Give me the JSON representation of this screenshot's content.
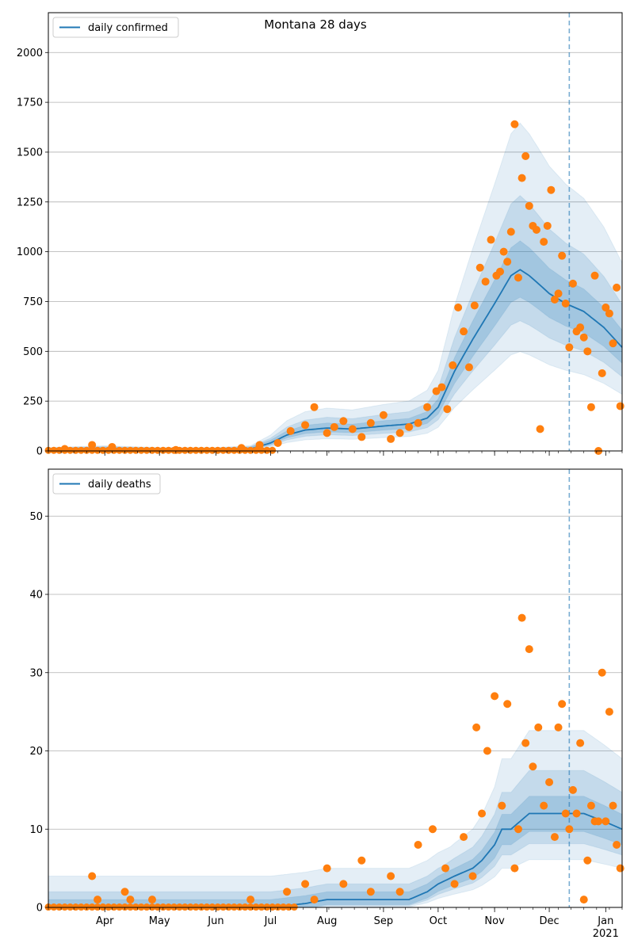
{
  "chart_data": [
    {
      "type": "line",
      "title": "Montana 28 days",
      "legend": {
        "placement": "top-left",
        "label": "daily confirmed"
      },
      "grid": "horizontal",
      "ylim": [
        0,
        2200
      ],
      "yticks": [
        0,
        250,
        500,
        750,
        1000,
        1250,
        1500,
        1750,
        2000
      ],
      "xlim": [
        "2020-03-01",
        "2021-01-10"
      ],
      "month_ticks": [
        "Apr",
        "May",
        "Jun",
        "Jul",
        "Aug",
        "Sep",
        "Oct",
        "Nov",
        "Dec",
        "Jan"
      ],
      "month_tick_dates": [
        "2020-04-01",
        "2020-05-01",
        "2020-06-01",
        "2020-07-01",
        "2020-08-01",
        "2020-09-01",
        "2020-10-01",
        "2020-11-01",
        "2020-12-01",
        "2021-01-01"
      ],
      "year_label": "2021",
      "vline_date": "2020-12-12",
      "series": [
        {
          "name": "daily confirmed",
          "color": "#1f77b4",
          "x": [
            "2020-03-01",
            "2020-04-01",
            "2020-05-01",
            "2020-06-01",
            "2020-06-20",
            "2020-07-01",
            "2020-07-10",
            "2020-07-20",
            "2020-08-01",
            "2020-08-15",
            "2020-09-01",
            "2020-09-15",
            "2020-09-25",
            "2020-10-01",
            "2020-10-10",
            "2020-10-20",
            "2020-11-01",
            "2020-11-10",
            "2020-11-15",
            "2020-11-20",
            "2020-11-25",
            "2020-12-01",
            "2020-12-10",
            "2020-12-20",
            "2020-12-31",
            "2021-01-10"
          ],
          "values": [
            5,
            10,
            5,
            5,
            10,
            40,
            80,
            105,
            115,
            110,
            125,
            135,
            165,
            220,
            400,
            560,
            740,
            880,
            910,
            880,
            840,
            790,
            740,
            700,
            620,
            520
          ]
        },
        {
          "name": "observed",
          "color": "#ff7f0e",
          "x": [
            "2020-03-10",
            "2020-03-25",
            "2020-04-05",
            "2020-05-10",
            "2020-06-15",
            "2020-06-25",
            "2020-07-05",
            "2020-07-12",
            "2020-07-20",
            "2020-07-25",
            "2020-08-01",
            "2020-08-05",
            "2020-08-10",
            "2020-08-15",
            "2020-08-20",
            "2020-08-25",
            "2020-09-01",
            "2020-09-05",
            "2020-09-10",
            "2020-09-15",
            "2020-09-20",
            "2020-09-25",
            "2020-09-30",
            "2020-10-03",
            "2020-10-06",
            "2020-10-09",
            "2020-10-12",
            "2020-10-15",
            "2020-10-18",
            "2020-10-21",
            "2020-10-24",
            "2020-10-27",
            "2020-10-30",
            "2020-11-02",
            "2020-11-04",
            "2020-11-06",
            "2020-11-08",
            "2020-11-10",
            "2020-11-12",
            "2020-11-14",
            "2020-11-16",
            "2020-11-18",
            "2020-11-20",
            "2020-11-22",
            "2020-11-24",
            "2020-11-26",
            "2020-11-28",
            "2020-11-30",
            "2020-12-02",
            "2020-12-04",
            "2020-12-06",
            "2020-12-08",
            "2020-12-10",
            "2020-12-12",
            "2020-12-14",
            "2020-12-16",
            "2020-12-18",
            "2020-12-20",
            "2020-12-22",
            "2020-12-24",
            "2020-12-26",
            "2020-12-28",
            "2020-12-30",
            "2021-01-01",
            "2021-01-03",
            "2021-01-05",
            "2021-01-07",
            "2021-01-09"
          ],
          "values": [
            10,
            30,
            20,
            5,
            15,
            30,
            40,
            100,
            130,
            220,
            90,
            120,
            150,
            110,
            70,
            140,
            180,
            60,
            90,
            120,
            140,
            220,
            300,
            320,
            210,
            430,
            720,
            600,
            420,
            730,
            920,
            850,
            1060,
            880,
            900,
            1000,
            950,
            1100,
            1640,
            870,
            1370,
            1480,
            1230,
            1130,
            1110,
            110,
            1050,
            1130,
            1310,
            760,
            790,
            980,
            740,
            520,
            840,
            600,
            620,
            570,
            500,
            220,
            880,
            0,
            390,
            720,
            690,
            540,
            820,
            225
          ]
        }
      ]
    },
    {
      "type": "line",
      "legend": {
        "placement": "top-left",
        "label": "daily deaths"
      },
      "grid": "horizontal",
      "ylim": [
        0,
        56
      ],
      "yticks": [
        0,
        10,
        20,
        30,
        40,
        50
      ],
      "xlim": [
        "2020-03-01",
        "2021-01-10"
      ],
      "month_ticks": [
        "Apr",
        "May",
        "Jun",
        "Jul",
        "Aug",
        "Sep",
        "Oct",
        "Nov",
        "Dec",
        "Jan"
      ],
      "month_tick_dates": [
        "2020-04-01",
        "2020-05-01",
        "2020-06-01",
        "2020-07-01",
        "2020-08-01",
        "2020-09-01",
        "2020-10-01",
        "2020-11-01",
        "2020-12-01",
        "2021-01-01"
      ],
      "year_label": "2021",
      "vline_date": "2020-12-12",
      "series": [
        {
          "name": "daily deaths",
          "color": "#1f77b4",
          "x": [
            "2020-03-01",
            "2020-04-01",
            "2020-05-01",
            "2020-06-01",
            "2020-07-01",
            "2020-07-20",
            "2020-08-01",
            "2020-08-20",
            "2020-09-01",
            "2020-09-15",
            "2020-09-25",
            "2020-10-01",
            "2020-10-10",
            "2020-10-20",
            "2020-10-25",
            "2020-11-01",
            "2020-11-05",
            "2020-11-10",
            "2020-11-15",
            "2020-11-20",
            "2020-11-25",
            "2020-12-01",
            "2020-12-10",
            "2020-12-20",
            "2020-12-31",
            "2021-01-10"
          ],
          "values": [
            0,
            0,
            0,
            0,
            0,
            0.5,
            1,
            1,
            1,
            1,
            2,
            3,
            4,
            5,
            6,
            8,
            10,
            10,
            11,
            12,
            12,
            12,
            12,
            12,
            11,
            10
          ]
        },
        {
          "name": "observed",
          "color": "#ff7f0e",
          "x": [
            "2020-03-25",
            "2020-03-28",
            "2020-04-12",
            "2020-04-15",
            "2020-04-27",
            "2020-06-20",
            "2020-07-10",
            "2020-07-20",
            "2020-07-25",
            "2020-08-01",
            "2020-08-10",
            "2020-08-20",
            "2020-08-25",
            "2020-09-05",
            "2020-09-10",
            "2020-09-20",
            "2020-09-28",
            "2020-10-05",
            "2020-10-10",
            "2020-10-15",
            "2020-10-20",
            "2020-10-22",
            "2020-10-25",
            "2020-10-28",
            "2020-11-01",
            "2020-11-05",
            "2020-11-08",
            "2020-11-12",
            "2020-11-14",
            "2020-11-16",
            "2020-11-18",
            "2020-11-20",
            "2020-11-22",
            "2020-11-25",
            "2020-11-28",
            "2020-12-01",
            "2020-12-04",
            "2020-12-06",
            "2020-12-08",
            "2020-12-10",
            "2020-12-12",
            "2020-12-14",
            "2020-12-16",
            "2020-12-18",
            "2020-12-20",
            "2020-12-22",
            "2020-12-24",
            "2020-12-26",
            "2020-12-28",
            "2020-12-30",
            "2021-01-01",
            "2021-01-03",
            "2021-01-05",
            "2021-01-07",
            "2021-01-09"
          ],
          "values": [
            4,
            1,
            2,
            1,
            1,
            1,
            2,
            3,
            1,
            5,
            3,
            6,
            2,
            4,
            2,
            8,
            10,
            5,
            3,
            9,
            4,
            23,
            12,
            20,
            27,
            13,
            26,
            5,
            10,
            37,
            21,
            33,
            18,
            23,
            13,
            16,
            9,
            23,
            26,
            12,
            10,
            15,
            12,
            21,
            1,
            6,
            13,
            11,
            11,
            30,
            11,
            25,
            13,
            8,
            5
          ]
        }
      ]
    }
  ]
}
